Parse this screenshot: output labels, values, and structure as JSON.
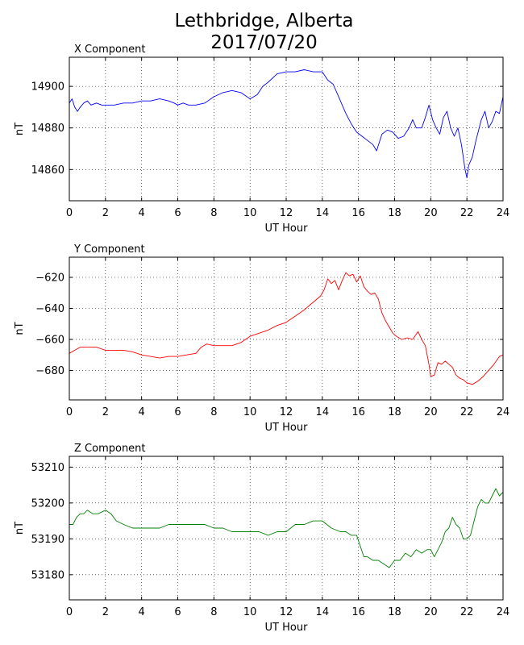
{
  "figure": {
    "title_line1": "Lethbridge, Alberta",
    "title_line2": "2017/07/20"
  },
  "chart_data": [
    {
      "type": "line",
      "title": "X Component",
      "xlabel": "UT Hour",
      "ylabel": "nT",
      "xlim": [
        0,
        24
      ],
      "ylim": [
        14845,
        14914
      ],
      "xticks": [
        0,
        2,
        4,
        6,
        8,
        10,
        12,
        14,
        16,
        18,
        20,
        22,
        24
      ],
      "yticks": [
        14860,
        14880,
        14900
      ],
      "grid": true,
      "color": "#0000ff",
      "series": [
        {
          "x": [
            0,
            0.15,
            0.3,
            0.45,
            0.6,
            0.8,
            1.0,
            1.2,
            1.5,
            1.8,
            2.0,
            2.5,
            3.0,
            3.5,
            4.0,
            4.5,
            5.0,
            5.5,
            5.8,
            6.0,
            6.3,
            6.6,
            7.0,
            7.5,
            8.0,
            8.5,
            9.0,
            9.5,
            10.0,
            10.4,
            10.7,
            11.0,
            11.5,
            12.0,
            12.5,
            13.0,
            13.5,
            14.0,
            14.3,
            14.6,
            15.0,
            15.3,
            15.6,
            15.9,
            16.2,
            16.5,
            16.8,
            17.0,
            17.3,
            17.6,
            17.9,
            18.2,
            18.5,
            18.8,
            19.0,
            19.2,
            19.5,
            19.7,
            19.9,
            20.1,
            20.3,
            20.5,
            20.7,
            20.9,
            21.1,
            21.3,
            21.5,
            21.7,
            21.9,
            22.0,
            22.1,
            22.3,
            22.5,
            22.8,
            23.0,
            23.2,
            23.4,
            23.6,
            23.8,
            24.0
          ],
          "y": [
            14892,
            14894,
            14890,
            14888,
            14890,
            14892,
            14893,
            14891,
            14892,
            14891,
            14891,
            14891,
            14892,
            14892,
            14893,
            14893,
            14894,
            14893,
            14892,
            14891,
            14892,
            14891,
            14891,
            14892,
            14895,
            14897,
            14898,
            14897,
            14894,
            14896,
            14900,
            14902,
            14906,
            14907,
            14907,
            14908,
            14907,
            14907,
            14903,
            14901,
            14893,
            14887,
            14882,
            14878,
            14876,
            14874,
            14872,
            14869,
            14877,
            14879,
            14878,
            14875,
            14876,
            14880,
            14884,
            14880,
            14880,
            14885,
            14891,
            14884,
            14880,
            14877,
            14885,
            14888,
            14880,
            14876,
            14880,
            14872,
            14860,
            14856,
            14862,
            14866,
            14874,
            14884,
            14888,
            14880,
            14883,
            14888,
            14887,
            14895
          ]
        }
      ]
    },
    {
      "type": "line",
      "title": "Y Component",
      "xlabel": "UT Hour",
      "ylabel": "nT",
      "xlim": [
        0,
        24
      ],
      "ylim": [
        -699,
        -607
      ],
      "xticks": [
        0,
        2,
        4,
        6,
        8,
        10,
        12,
        14,
        16,
        18,
        20,
        22,
        24
      ],
      "yticks": [
        -680,
        -660,
        -640,
        -620
      ],
      "grid": true,
      "color": "#ff0000",
      "series": [
        {
          "x": [
            0,
            0.3,
            0.6,
            1.0,
            1.5,
            2.0,
            2.5,
            3.0,
            3.5,
            4.0,
            4.5,
            5.0,
            5.5,
            6.0,
            6.5,
            7.0,
            7.3,
            7.6,
            8.0,
            8.5,
            9.0,
            9.5,
            10.0,
            10.5,
            11.0,
            11.5,
            12.0,
            12.5,
            13.0,
            13.3,
            13.6,
            13.9,
            14.1,
            14.3,
            14.5,
            14.7,
            14.9,
            15.1,
            15.3,
            15.5,
            15.7,
            15.9,
            16.1,
            16.3,
            16.5,
            16.7,
            16.9,
            17.1,
            17.3,
            17.5,
            17.7,
            17.9,
            18.1,
            18.4,
            18.7,
            19.0,
            19.3,
            19.5,
            19.7,
            19.9,
            20.0,
            20.2,
            20.4,
            20.6,
            20.8,
            21.0,
            21.2,
            21.4,
            21.6,
            21.8,
            22.0,
            22.3,
            22.6,
            22.9,
            23.2,
            23.5,
            23.8,
            24.0
          ],
          "y": [
            -669,
            -667,
            -665,
            -665,
            -665,
            -667,
            -667,
            -667,
            -668,
            -670,
            -671,
            -672,
            -671,
            -671,
            -670,
            -669,
            -665,
            -663,
            -664,
            -664,
            -664,
            -662,
            -658,
            -656,
            -654,
            -651,
            -649,
            -645,
            -641,
            -638,
            -635,
            -632,
            -628,
            -621,
            -624,
            -622,
            -628,
            -622,
            -617,
            -619,
            -618,
            -623,
            -619,
            -626,
            -629,
            -631,
            -630,
            -634,
            -643,
            -648,
            -652,
            -656,
            -658,
            -660,
            -659,
            -660,
            -655,
            -660,
            -664,
            -676,
            -684,
            -683,
            -675,
            -676,
            -674,
            -676,
            -678,
            -683,
            -685,
            -686,
            -688,
            -689,
            -687,
            -684,
            -680,
            -676,
            -671,
            -670
          ]
        }
      ]
    },
    {
      "type": "line",
      "title": "Z Component",
      "xlabel": "UT Hour",
      "ylabel": "nT",
      "xlim": [
        0,
        24
      ],
      "ylim": [
        53173,
        53213
      ],
      "xticks": [
        0,
        2,
        4,
        6,
        8,
        10,
        12,
        14,
        16,
        18,
        20,
        22,
        24
      ],
      "yticks": [
        53180,
        53190,
        53200,
        53210
      ],
      "grid": true,
      "color": "#008000",
      "series": [
        {
          "x": [
            0,
            0.2,
            0.4,
            0.6,
            0.8,
            1.0,
            1.3,
            1.6,
            2.0,
            2.3,
            2.6,
            3.0,
            3.5,
            4.0,
            4.5,
            5.0,
            5.5,
            6.0,
            6.5,
            7.0,
            7.5,
            8.0,
            8.5,
            9.0,
            9.5,
            10.0,
            10.5,
            11.0,
            11.5,
            12.0,
            12.5,
            13.0,
            13.5,
            14.0,
            14.5,
            15.0,
            15.3,
            15.6,
            15.9,
            16.1,
            16.3,
            16.5,
            16.8,
            17.1,
            17.4,
            17.7,
            18.0,
            18.3,
            18.6,
            18.9,
            19.2,
            19.5,
            19.8,
            20.0,
            20.2,
            20.4,
            20.6,
            20.8,
            21.0,
            21.2,
            21.4,
            21.6,
            21.8,
            22.0,
            22.2,
            22.4,
            22.6,
            22.8,
            23.0,
            23.2,
            23.4,
            23.6,
            23.8,
            24.0
          ],
          "y": [
            53194,
            53194,
            53196,
            53197,
            53197,
            53198,
            53197,
            53197,
            53198,
            53197,
            53195,
            53194,
            53193,
            53193,
            53193,
            53193,
            53194,
            53194,
            53194,
            53194,
            53194,
            53193,
            53193,
            53192,
            53192,
            53192,
            53192,
            53191,
            53192,
            53192,
            53194,
            53194,
            53195,
            53195,
            53193,
            53192,
            53192,
            53191,
            53191,
            53188,
            53185,
            53185,
            53184,
            53184,
            53183,
            53182,
            53184,
            53184,
            53186,
            53185,
            53187,
            53186,
            53187,
            53187,
            53185,
            53187,
            53189,
            53192,
            53193,
            53196,
            53194,
            53193,
            53190,
            53190,
            53191,
            53195,
            53199,
            53201,
            53200,
            53200,
            53202,
            53204,
            53202,
            53203
          ]
        }
      ]
    }
  ]
}
